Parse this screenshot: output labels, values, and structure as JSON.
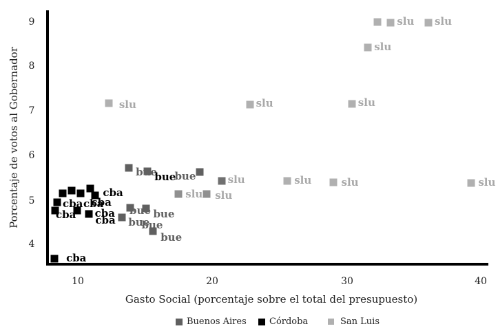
{
  "chart_data": {
    "type": "scatter",
    "title": "",
    "xlabel": "Gasto Social (porcentaje sobre el total del presupuesto)",
    "ylabel": "Porcentaje de votos al Gobernador",
    "xlim": [
      7.2,
      40.6
    ],
    "ylim": [
      3.5,
      9.25
    ],
    "xticks": [
      10,
      20,
      30,
      40
    ],
    "yticks": [
      4,
      5,
      6,
      7,
      8,
      9
    ],
    "grid": false,
    "legend_position": "bottom",
    "legend": [
      "Buenos Aires",
      "Córdoba",
      "San Luis"
    ],
    "series": [
      {
        "name": "Buenos Aires",
        "color": "#606060",
        "label_color": "#606060",
        "points": [
          {
            "x": 13.8,
            "y": 5.73,
            "label": "bue",
            "dx": 5,
            "dy": -1
          },
          {
            "x": 15.2,
            "y": 5.65,
            "label": "bue",
            "dx": 5,
            "dy": 1,
            "label_color": "#000000"
          },
          {
            "x": 19.1,
            "y": 5.64,
            "label": "bue",
            "dx": -42,
            "dy": -1
          },
          {
            "x": 13.9,
            "y": 4.83,
            "label": "bue",
            "dx": -6,
            "dy": -3
          },
          {
            "x": 15.1,
            "y": 4.82,
            "label": "bue",
            "dx": 5,
            "dy": 1
          },
          {
            "x": 13.3,
            "y": 4.62,
            "label": "bue",
            "dx": 4,
            "dy": 0
          },
          {
            "x": 15.6,
            "y": 4.31,
            "label": "bue",
            "dx": 6,
            "dy": 2
          },
          {
            "x": 15.1,
            "y": 4.55,
            "label": "bue",
            "dx": -12,
            "dy": 0,
            "hidden_marker": true
          }
        ]
      },
      {
        "name": "Córdoba",
        "color": "#000000",
        "label_color": "#000000",
        "points": [
          {
            "x": 8.87,
            "y": 5.16,
            "label": "",
            "dx": 0,
            "dy": 0
          },
          {
            "x": 9.54,
            "y": 5.22,
            "label": "",
            "dx": 0,
            "dy": 0
          },
          {
            "x": 10.2,
            "y": 5.16,
            "label": "",
            "dx": 0,
            "dy": 0
          },
          {
            "x": 10.9,
            "y": 5.27,
            "label": "",
            "dx": 0,
            "dy": 0
          },
          {
            "x": 11.3,
            "y": 5.11,
            "label": "cba",
            "dx": 6,
            "dy": -11
          },
          {
            "x": 8.46,
            "y": 4.96,
            "label": "cba",
            "dx": 3,
            "dy": -5
          },
          {
            "x": 8.31,
            "y": 4.77,
            "label": "cba",
            "dx": -4,
            "dy": -1
          },
          {
            "x": 9.95,
            "y": 4.77,
            "label": "cba",
            "dx": 4,
            "dy": -17
          },
          {
            "x": 10.8,
            "y": 4.69,
            "label": "cba",
            "dx": 4,
            "dy": -8
          },
          {
            "x": 8.26,
            "y": 3.69,
            "label": "cba",
            "dx": 12,
            "dy": -8
          }
        ],
        "extra_labels": [
          {
            "x": 10.9,
            "y": 4.96,
            "label": "cba"
          },
          {
            "x": 11.2,
            "y": 4.55,
            "label": "cba"
          }
        ]
      },
      {
        "name": "San Luis",
        "color": "#b0b0b0",
        "label_color": "#a8a8a8",
        "points": [
          {
            "x": 32.3,
            "y": 9.0,
            "label": "",
            "dx": 0,
            "dy": 0
          },
          {
            "x": 33.3,
            "y": 8.98,
            "label": "slu",
            "dx": 4,
            "dy": -9
          },
          {
            "x": 36.1,
            "y": 8.98,
            "label": "slu",
            "dx": 4,
            "dy": -9
          },
          {
            "x": 31.6,
            "y": 8.43,
            "label": "slu",
            "dx": 4,
            "dy": -8
          },
          {
            "x": 12.3,
            "y": 7.18,
            "label": "slu",
            "dx": 10,
            "dy": -5
          },
          {
            "x": 22.8,
            "y": 7.15,
            "label": "slu",
            "dx": 4,
            "dy": -9
          },
          {
            "x": 30.4,
            "y": 7.16,
            "label": "slu",
            "dx": 4,
            "dy": -9
          },
          {
            "x": 20.7,
            "y": 5.43,
            "label": "slu",
            "dx": 4,
            "dy": -9,
            "color": "#707070"
          },
          {
            "x": 17.5,
            "y": 5.14,
            "label": "slu",
            "dx": 5,
            "dy": -7,
            "color": "#909090"
          },
          {
            "x": 19.6,
            "y": 5.14,
            "label": "slu",
            "dx": 7,
            "dy": -5,
            "color": "#909090"
          },
          {
            "x": 25.6,
            "y": 5.43,
            "label": "slu",
            "dx": 5,
            "dy": -8
          },
          {
            "x": 29.0,
            "y": 5.4,
            "label": "slu",
            "dx": 7,
            "dy": -7
          },
          {
            "x": 39.3,
            "y": 5.39,
            "label": "slu",
            "dx": 5,
            "dy": -8
          }
        ]
      }
    ]
  },
  "axes": {
    "xlabel": "Gasto Social (porcentaje sobre el total del presupuesto)",
    "ylabel": "Porcentaje de votos al Gobernador",
    "xticks": [
      "10",
      "20",
      "30",
      "40"
    ],
    "yticks": [
      "9",
      "8",
      "7",
      "6",
      "5",
      "4"
    ]
  },
  "legend": {
    "items": [
      {
        "label": "Buenos Aires",
        "color": "#606060"
      },
      {
        "label": "Córdoba",
        "color": "#000000"
      },
      {
        "label": "San Luis",
        "color": "#b0b0b0"
      }
    ]
  }
}
